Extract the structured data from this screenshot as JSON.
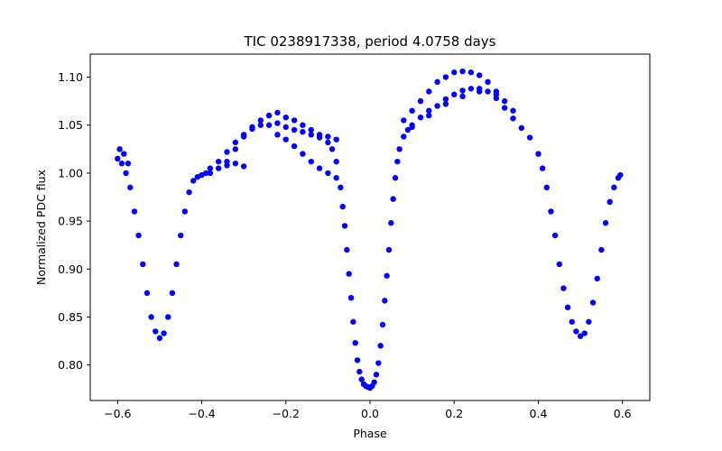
{
  "chart_data": {
    "type": "scatter",
    "title": "TIC 0238917338, period 4.0758 days",
    "xlabel": "Phase",
    "ylabel": "Normalized PDC flux",
    "xlim": [
      -0.665,
      0.665
    ],
    "ylim": [
      0.763,
      1.124
    ],
    "xticks": [
      -0.6,
      -0.4,
      -0.2,
      0.0,
      0.2,
      0.4,
      0.6
    ],
    "xtick_labels": [
      "−0.6",
      "−0.4",
      "−0.2",
      "0.0",
      "0.2",
      "0.4",
      "0.6"
    ],
    "yticks": [
      0.8,
      0.85,
      0.9,
      0.95,
      1.0,
      1.05,
      1.1
    ],
    "ytick_labels": [
      "0.80",
      "0.85",
      "0.90",
      "0.95",
      "1.00",
      "1.05",
      "1.10"
    ],
    "grid": false,
    "marker_color": "#0000ff",
    "series": [
      {
        "x": [
          -0.6,
          -0.59,
          -0.58,
          -0.57,
          -0.56,
          -0.55,
          -0.54,
          -0.53,
          -0.52,
          -0.51,
          -0.5,
          -0.49,
          -0.48,
          -0.47,
          -0.46,
          -0.45,
          -0.44,
          -0.43,
          -0.42,
          -0.41,
          -0.4,
          -0.39,
          -0.38,
          -0.36,
          -0.34,
          -0.32,
          -0.3,
          -0.28,
          -0.26,
          -0.24,
          -0.22,
          -0.2,
          -0.18,
          -0.16,
          -0.14,
          -0.12,
          -0.1,
          -0.09,
          -0.08,
          -0.07,
          -0.065,
          -0.06,
          -0.055,
          -0.05,
          -0.045,
          -0.04,
          -0.035,
          -0.03,
          -0.025,
          -0.02,
          -0.015,
          -0.01,
          -0.005,
          0.0,
          0.005,
          0.01,
          0.015,
          0.02,
          0.025,
          0.03,
          0.035,
          0.04,
          0.045,
          0.05,
          0.055,
          0.06,
          0.065,
          0.07,
          0.08,
          0.09,
          0.1,
          0.12,
          0.14,
          0.16,
          0.18,
          0.2,
          0.22,
          0.24,
          0.26,
          0.28,
          0.3,
          0.32,
          0.34,
          0.36,
          0.38,
          0.4,
          0.41,
          0.42,
          0.43,
          0.44,
          0.45,
          0.46,
          0.47,
          0.48,
          0.49,
          0.5,
          0.51,
          0.52,
          0.53,
          0.54,
          0.55,
          0.56,
          0.57,
          0.58,
          0.59,
          0.595
        ],
        "y": [
          1.015,
          1.01,
          1.0,
          0.985,
          0.96,
          0.935,
          0.905,
          0.875,
          0.85,
          0.835,
          0.828,
          0.833,
          0.85,
          0.875,
          0.905,
          0.935,
          0.96,
          0.98,
          0.992,
          0.996,
          0.998,
          1.0,
          1.005,
          1.012,
          1.022,
          1.032,
          1.04,
          1.046,
          1.05,
          1.05,
          1.052,
          1.048,
          1.045,
          1.043,
          1.04,
          1.037,
          1.032,
          1.025,
          1.012,
          0.985,
          0.965,
          0.945,
          0.92,
          0.895,
          0.87,
          0.845,
          0.823,
          0.805,
          0.793,
          0.785,
          0.78,
          0.778,
          0.777,
          0.776,
          0.778,
          0.782,
          0.79,
          0.802,
          0.82,
          0.842,
          0.867,
          0.893,
          0.92,
          0.948,
          0.973,
          0.995,
          1.012,
          1.025,
          1.038,
          1.045,
          1.05,
          1.058,
          1.065,
          1.07,
          1.077,
          1.082,
          1.086,
          1.088,
          1.088,
          1.085,
          1.078,
          1.068,
          1.057,
          1.047,
          1.037,
          1.02,
          1.005,
          0.985,
          0.96,
          0.935,
          0.905,
          0.88,
          0.86,
          0.845,
          0.835,
          0.83,
          0.833,
          0.845,
          0.865,
          0.89,
          0.92,
          0.948,
          0.97,
          0.985,
          0.995,
          0.998
        ]
      },
      {
        "x": [
          -0.595,
          -0.585,
          -0.575,
          -0.38,
          -0.36,
          -0.34,
          -0.32,
          -0.3,
          -0.28,
          -0.26,
          -0.24,
          -0.22,
          -0.2,
          -0.18,
          -0.16,
          -0.14,
          -0.12,
          -0.1,
          -0.08,
          0.08,
          0.1,
          0.12,
          0.14,
          0.16,
          0.18,
          0.2,
          0.22,
          0.24,
          0.26,
          0.28,
          0.3,
          0.32,
          0.34
        ],
        "y": [
          1.025,
          1.02,
          1.01,
          1.0,
          1.005,
          1.012,
          1.025,
          1.038,
          1.048,
          1.055,
          1.06,
          1.063,
          1.058,
          1.055,
          1.05,
          1.045,
          1.04,
          1.038,
          1.035,
          1.055,
          1.065,
          1.075,
          1.085,
          1.095,
          1.1,
          1.105,
          1.106,
          1.105,
          1.102,
          1.095,
          1.085,
          1.075,
          1.065
        ]
      },
      {
        "x": [
          -0.22,
          -0.2,
          -0.18,
          -0.16,
          -0.14,
          -0.12,
          -0.1,
          -0.08,
          -0.34,
          -0.32,
          -0.3,
          0.1,
          0.14,
          0.18,
          0.22,
          0.26,
          0.3
        ],
        "y": [
          1.04,
          1.035,
          1.028,
          1.02,
          1.012,
          1.005,
          1.0,
          0.995,
          1.008,
          1.01,
          1.007,
          1.048,
          1.06,
          1.072,
          1.08,
          1.085,
          1.082
        ]
      }
    ]
  }
}
